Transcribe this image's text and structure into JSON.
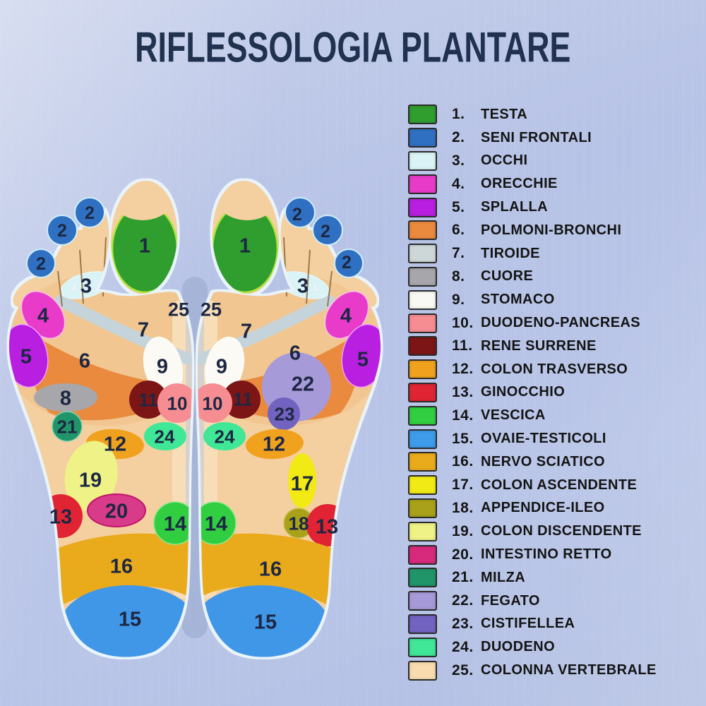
{
  "title": "RIFLESSOLOGIA PLANTARE",
  "legend": {
    "items": [
      {
        "num": "1.",
        "label": "TESTA",
        "color": "#2f9e2f"
      },
      {
        "num": "2.",
        "label": "SENI FRONTALI",
        "color": "#3070c2"
      },
      {
        "num": "3.",
        "label": "OCCHI",
        "color": "#d9f3f6"
      },
      {
        "num": "4.",
        "label": "ORECCHIE",
        "color": "#e93bc9"
      },
      {
        "num": "5.",
        "label": "SPLALLA",
        "color": "#b81fe0"
      },
      {
        "num": "6.",
        "label": "POLMONI-BRONCHI",
        "color": "#e98a3e"
      },
      {
        "num": "7.",
        "label": "TIROIDE",
        "color": "#cdd7d7"
      },
      {
        "num": "8.",
        "label": "CUORE",
        "color": "#a7a7ab"
      },
      {
        "num": "9.",
        "label": "STOMACO",
        "color": "#f9f9f3"
      },
      {
        "num": "10.",
        "label": "DUODENO-PANCREAS",
        "color": "#f68d93"
      },
      {
        "num": "11.",
        "label": "RENE SURRENE",
        "color": "#7c1616"
      },
      {
        "num": "12.",
        "label": "COLON TRASVERSO",
        "color": "#f0a21f"
      },
      {
        "num": "13.",
        "label": "GINOCCHIO",
        "color": "#e02433"
      },
      {
        "num": "14.",
        "label": "VESCICA",
        "color": "#31ce42"
      },
      {
        "num": "15.",
        "label": "OVAIE-TESTICOLI",
        "color": "#3d9bea"
      },
      {
        "num": "16.",
        "label": "NERVO SCIATICO",
        "color": "#e9ab1c"
      },
      {
        "num": "17.",
        "label": "COLON ASCENDENTE",
        "color": "#f2ea14"
      },
      {
        "num": "18.",
        "label": "APPENDICE-ILEO",
        "color": "#a9a119"
      },
      {
        "num": "19.",
        "label": "COLON DISCENDENTE",
        "color": "#eef287"
      },
      {
        "num": "20.",
        "label": "INTESTINO RETTO",
        "color": "#d82a7c"
      },
      {
        "num": "21.",
        "label": "MILZA",
        "color": "#20956a"
      },
      {
        "num": "22.",
        "label": "FEGATO",
        "color": "#a79ad9"
      },
      {
        "num": "23.",
        "label": "CISTIFELLEA",
        "color": "#7263c0"
      },
      {
        "num": "24.",
        "label": "DUODENO",
        "color": "#3fe797"
      },
      {
        "num": "25.",
        "label": "COLONNA VERTEBRALE",
        "color": "#f8dcb0"
      }
    ]
  },
  "feet": {
    "left_markers": [
      "1",
      "2",
      "2",
      "2",
      "3",
      "4",
      "5",
      "6",
      "7",
      "25",
      "9",
      "10",
      "11",
      "8",
      "21",
      "24",
      "12",
      "19",
      "20",
      "13",
      "14",
      "16",
      "15"
    ],
    "right_markers": [
      "1",
      "2",
      "2",
      "2",
      "3",
      "4",
      "5",
      "6",
      "7",
      "25",
      "9",
      "10",
      "11",
      "22",
      "23",
      "24",
      "12",
      "17",
      "18",
      "13",
      "14",
      "16",
      "15"
    ]
  }
}
